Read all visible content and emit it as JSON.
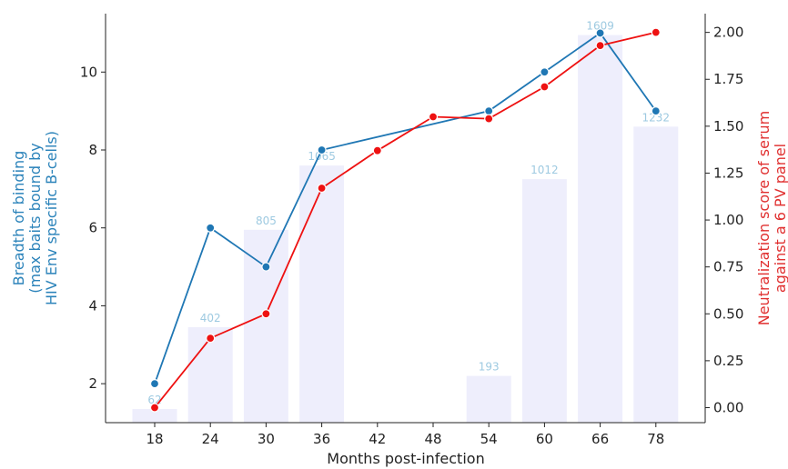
{
  "chart_data": {
    "type": "bar+line",
    "categories": [
      "18",
      "24",
      "30",
      "36",
      "42",
      "48",
      "54",
      "60",
      "66",
      "78"
    ],
    "xlabel": "Months post-infection",
    "ylabel_left": [
      "Breadth of binding",
      "(max baits bound by",
      "HIV Env specific B-cells)"
    ],
    "ylabel_right": [
      "Neutralization score of serum",
      "against a 6 PV panel"
    ],
    "ylim_left": [
      1.0,
      11.5
    ],
    "ylim_right": [
      -0.08,
      2.1
    ],
    "yticks_left": [
      "2",
      "4",
      "6",
      "8",
      "10"
    ],
    "yticks_right": [
      "0.00",
      "0.25",
      "0.50",
      "0.75",
      "1.00",
      "1.25",
      "1.50",
      "1.75",
      "2.00"
    ],
    "bars": {
      "axis": "left",
      "color": "#eeeefc",
      "values": [
        1.35,
        3.45,
        5.95,
        7.6,
        null,
        null,
        2.2,
        7.25,
        10.95,
        8.6
      ],
      "labels": [
        "62",
        "402",
        "805",
        "1065",
        null,
        null,
        "193",
        "1012",
        "1609",
        "1232"
      ]
    },
    "series": [
      {
        "axis": "left",
        "color": "#1f77b4",
        "values": [
          2,
          6,
          5,
          8,
          null,
          null,
          9,
          10,
          11,
          9
        ]
      },
      {
        "axis": "right",
        "color": "#ee1111",
        "values": [
          0.0,
          0.37,
          0.5,
          1.17,
          1.37,
          1.55,
          1.54,
          1.71,
          1.93,
          2.0
        ]
      }
    ],
    "grid": false
  }
}
